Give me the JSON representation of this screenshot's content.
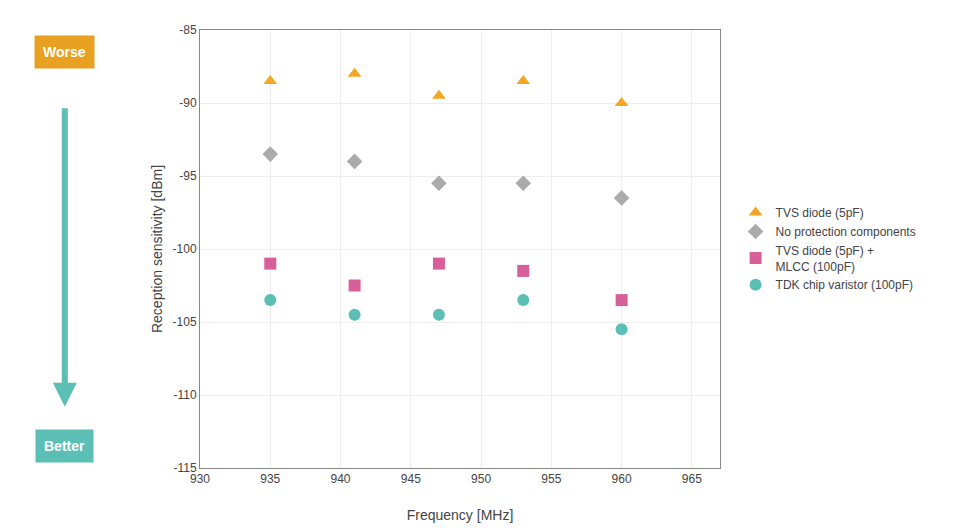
{
  "chart_data": {
    "type": "scatter",
    "xlabel": "Frequency [MHz]",
    "ylabel": "Reception sensitivity [dBm]",
    "xlim": [
      930,
      967
    ],
    "ylim": [
      -115,
      -85
    ],
    "xticks": [
      930,
      935,
      940,
      945,
      950,
      955,
      960,
      965
    ],
    "yticks": [
      -85,
      -90,
      -95,
      -100,
      -105,
      -110,
      -115
    ],
    "grid": true,
    "legend": "right",
    "annotations": [
      "Worse",
      "Better"
    ],
    "series": [
      {
        "name": "TVS diode (5pF)",
        "color": "#F5A623",
        "marker": "triangle",
        "x": [
          935,
          941,
          947,
          953,
          960
        ],
        "values": [
          -88.5,
          -88.0,
          -89.5,
          -88.5,
          -90.0
        ]
      },
      {
        "name": "No protection components",
        "color": "#ABABAB",
        "marker": "diamond",
        "x": [
          935,
          941,
          947,
          953,
          960
        ],
        "values": [
          -93.5,
          -94.0,
          -95.5,
          -95.5,
          -96.5
        ]
      },
      {
        "name": "TVS diode (5pF) +\nMLCC (100pF)",
        "color": "#D8609A",
        "marker": "square",
        "x": [
          935,
          941,
          947,
          953,
          960
        ],
        "values": [
          -101.0,
          -102.5,
          -101.0,
          -101.5,
          -103.5
        ]
      },
      {
        "name": "TDK chip varistor (100pF)",
        "color": "#5BBFB5",
        "marker": "circle",
        "x": [
          935,
          941,
          947,
          953,
          960
        ],
        "values": [
          -103.5,
          -104.5,
          -104.5,
          -103.5,
          -105.5
        ]
      }
    ]
  }
}
